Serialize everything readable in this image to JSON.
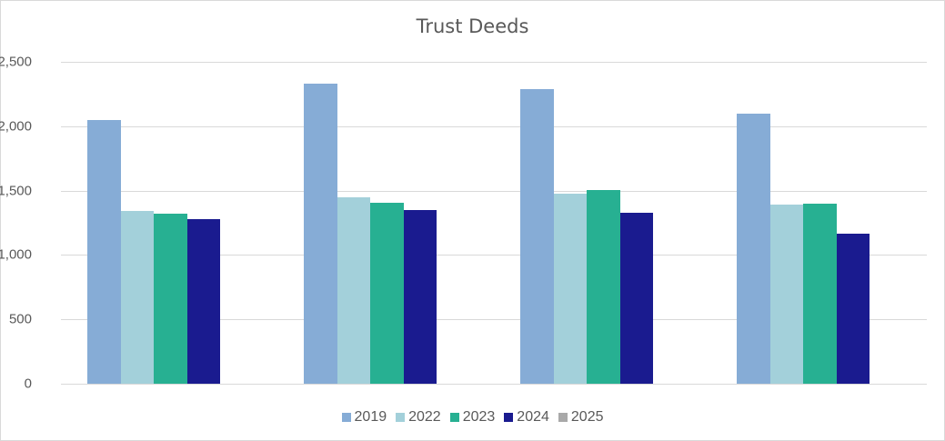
{
  "chart_data": {
    "type": "bar",
    "title": "Trust Deeds",
    "xlabel": "",
    "ylabel": "",
    "categories": [
      "",
      "",
      "",
      ""
    ],
    "ylim": [
      0,
      2500
    ],
    "yticks": [
      "0",
      "500",
      "1,000",
      "1,500",
      "2,000",
      "2,500"
    ],
    "grid": true,
    "legend_position": "bottom",
    "series": [
      {
        "name": "2019",
        "color": "#86acd6",
        "values": [
          2048,
          2330,
          2288,
          2097
        ]
      },
      {
        "name": "2022",
        "color": "#a3d0da",
        "values": [
          1342,
          1448,
          1476,
          1391
        ]
      },
      {
        "name": "2023",
        "color": "#27b092",
        "values": [
          1321,
          1405,
          1504,
          1395
        ]
      },
      {
        "name": "2024",
        "color": "#1a1b8f",
        "values": [
          1278,
          1349,
          1328,
          1165
        ]
      },
      {
        "name": "2025",
        "color": "#a9a9a9",
        "values": [
          0,
          0,
          0,
          0
        ]
      }
    ]
  }
}
